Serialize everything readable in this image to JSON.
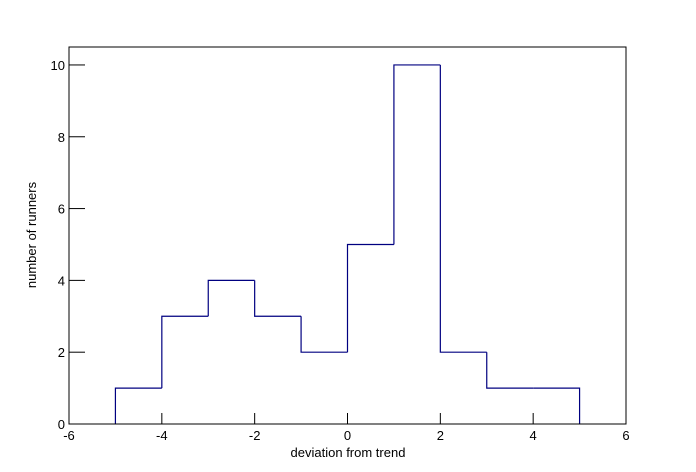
{
  "chart_data": {
    "type": "histogram",
    "x_label": "deviation from trend",
    "y_label": "number of runners",
    "bins": [
      -5,
      -4,
      -3,
      -2,
      -1,
      0,
      1,
      2,
      3,
      4,
      5
    ],
    "values": [
      1,
      3,
      4,
      3,
      2,
      5,
      10,
      2,
      1,
      1
    ],
    "color": "#000080",
    "xlim": [
      -6,
      6
    ],
    "ylim": [
      0,
      10.5
    ],
    "xticks": [
      -6,
      -4,
      -2,
      0,
      2,
      4,
      6
    ],
    "yticks": [
      0,
      2,
      4,
      6,
      8,
      10
    ]
  }
}
